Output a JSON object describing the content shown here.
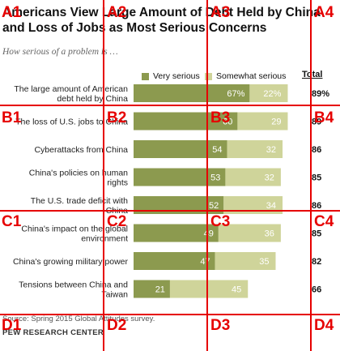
{
  "chart_data": {
    "type": "bar",
    "title": "Americans View Large Amount of Debt Held by China and Loss of Jobs as Most Serious Concerns",
    "subtitle": "How serious of a problem is …",
    "categories": [
      [
        "The large amount of American",
        "debt held by China"
      ],
      [
        "The loss of U.S. jobs to China"
      ],
      [
        "Cyberattacks from China"
      ],
      [
        "China's policies on human",
        "rights"
      ],
      [
        "The U.S. trade deficit with",
        "China"
      ],
      [
        "China's impact on the global",
        "environment"
      ],
      [
        "China's growing military power"
      ],
      [
        "Tensions between China and",
        "Taiwan"
      ]
    ],
    "series": [
      {
        "name": "Very serious",
        "values": [
          67,
          60,
          54,
          53,
          52,
          49,
          47,
          21
        ],
        "labels": [
          "67%",
          "60",
          "54",
          "53",
          "52",
          "49",
          "47",
          "21"
        ]
      },
      {
        "name": "Somewhat serious",
        "values": [
          22,
          29,
          32,
          32,
          34,
          36,
          35,
          45
        ],
        "labels": [
          "22%",
          "29",
          "32",
          "32",
          "34",
          "36",
          "35",
          "45"
        ]
      }
    ],
    "total_label": "Total",
    "totals": [
      "89%",
      "89",
      "86",
      "85",
      "86",
      "85",
      "82",
      "66"
    ],
    "colors": {
      "very_serious": "#8c9a4f",
      "somewhat_serious": "#cfd49a"
    }
  },
  "source": "Source: Spring 2015 Global Attitudes survey.",
  "org": "PEW RESEARCH CENTER",
  "grid": {
    "labels": [
      "A1",
      "A2",
      "A3",
      "A4",
      "B1",
      "B2",
      "B3",
      "B4",
      "C1",
      "C2",
      "C3",
      "C4",
      "D1",
      "D2",
      "D3",
      "D4"
    ],
    "color": "#e60000"
  }
}
